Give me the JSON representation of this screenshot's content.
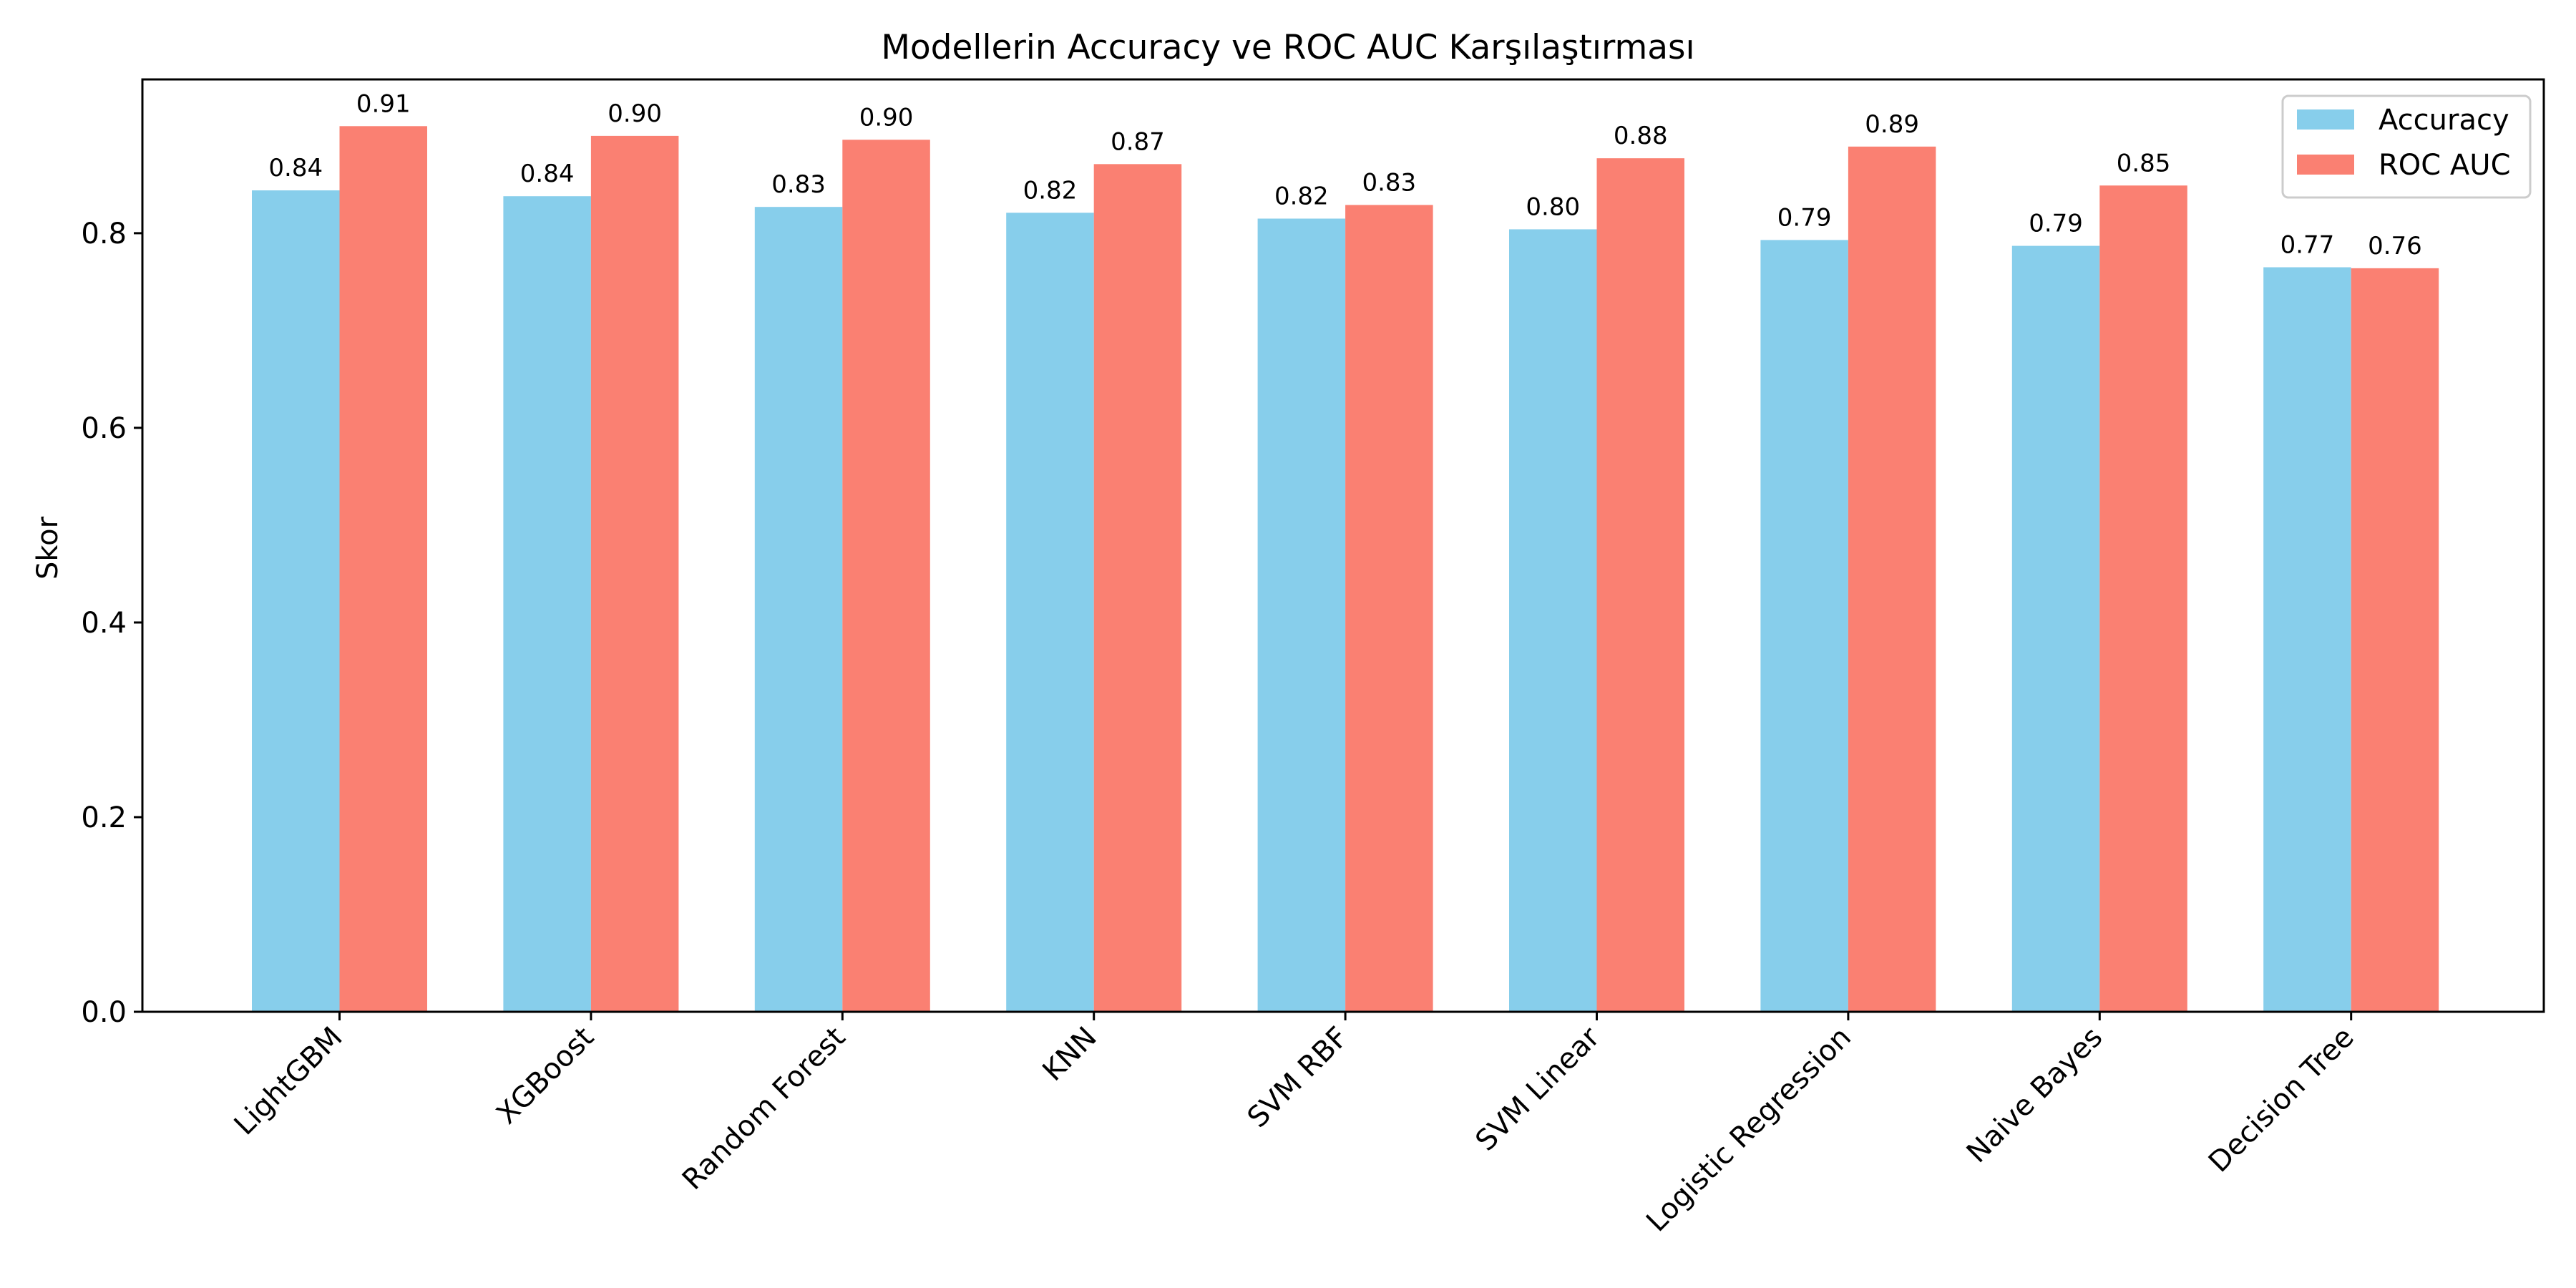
{
  "chart_data": {
    "type": "bar",
    "title": "Modellerin Accuracy ve ROC AUC Karşılaştırması",
    "xlabel": "",
    "ylabel": "Skor",
    "ylim": [
      0,
      0.958
    ],
    "yticks": [
      "0.0",
      "0.2",
      "0.4",
      "0.6",
      "0.8"
    ],
    "grid": false,
    "legend_position": "top-right",
    "categories": [
      "LightGBM",
      "XGBoost",
      "Random Forest",
      "KNN",
      "SVM RBF",
      "SVM Linear",
      "Logistic Regression",
      "Naive Bayes",
      "Decision Tree"
    ],
    "series": [
      {
        "name": "Accuracy",
        "color": "#87ceeb",
        "values": [
          0.844,
          0.838,
          0.827,
          0.821,
          0.815,
          0.804,
          0.793,
          0.787,
          0.765
        ],
        "labels": [
          "0.84",
          "0.84",
          "0.83",
          "0.82",
          "0.82",
          "0.80",
          "0.79",
          "0.79",
          "0.77"
        ]
      },
      {
        "name": "ROC AUC",
        "color": "#fa8072",
        "values": [
          0.91,
          0.9,
          0.896,
          0.871,
          0.829,
          0.877,
          0.889,
          0.849,
          0.764
        ],
        "labels": [
          "0.91",
          "0.90",
          "0.90",
          "0.87",
          "0.83",
          "0.88",
          "0.89",
          "0.85",
          "0.76"
        ]
      }
    ]
  }
}
